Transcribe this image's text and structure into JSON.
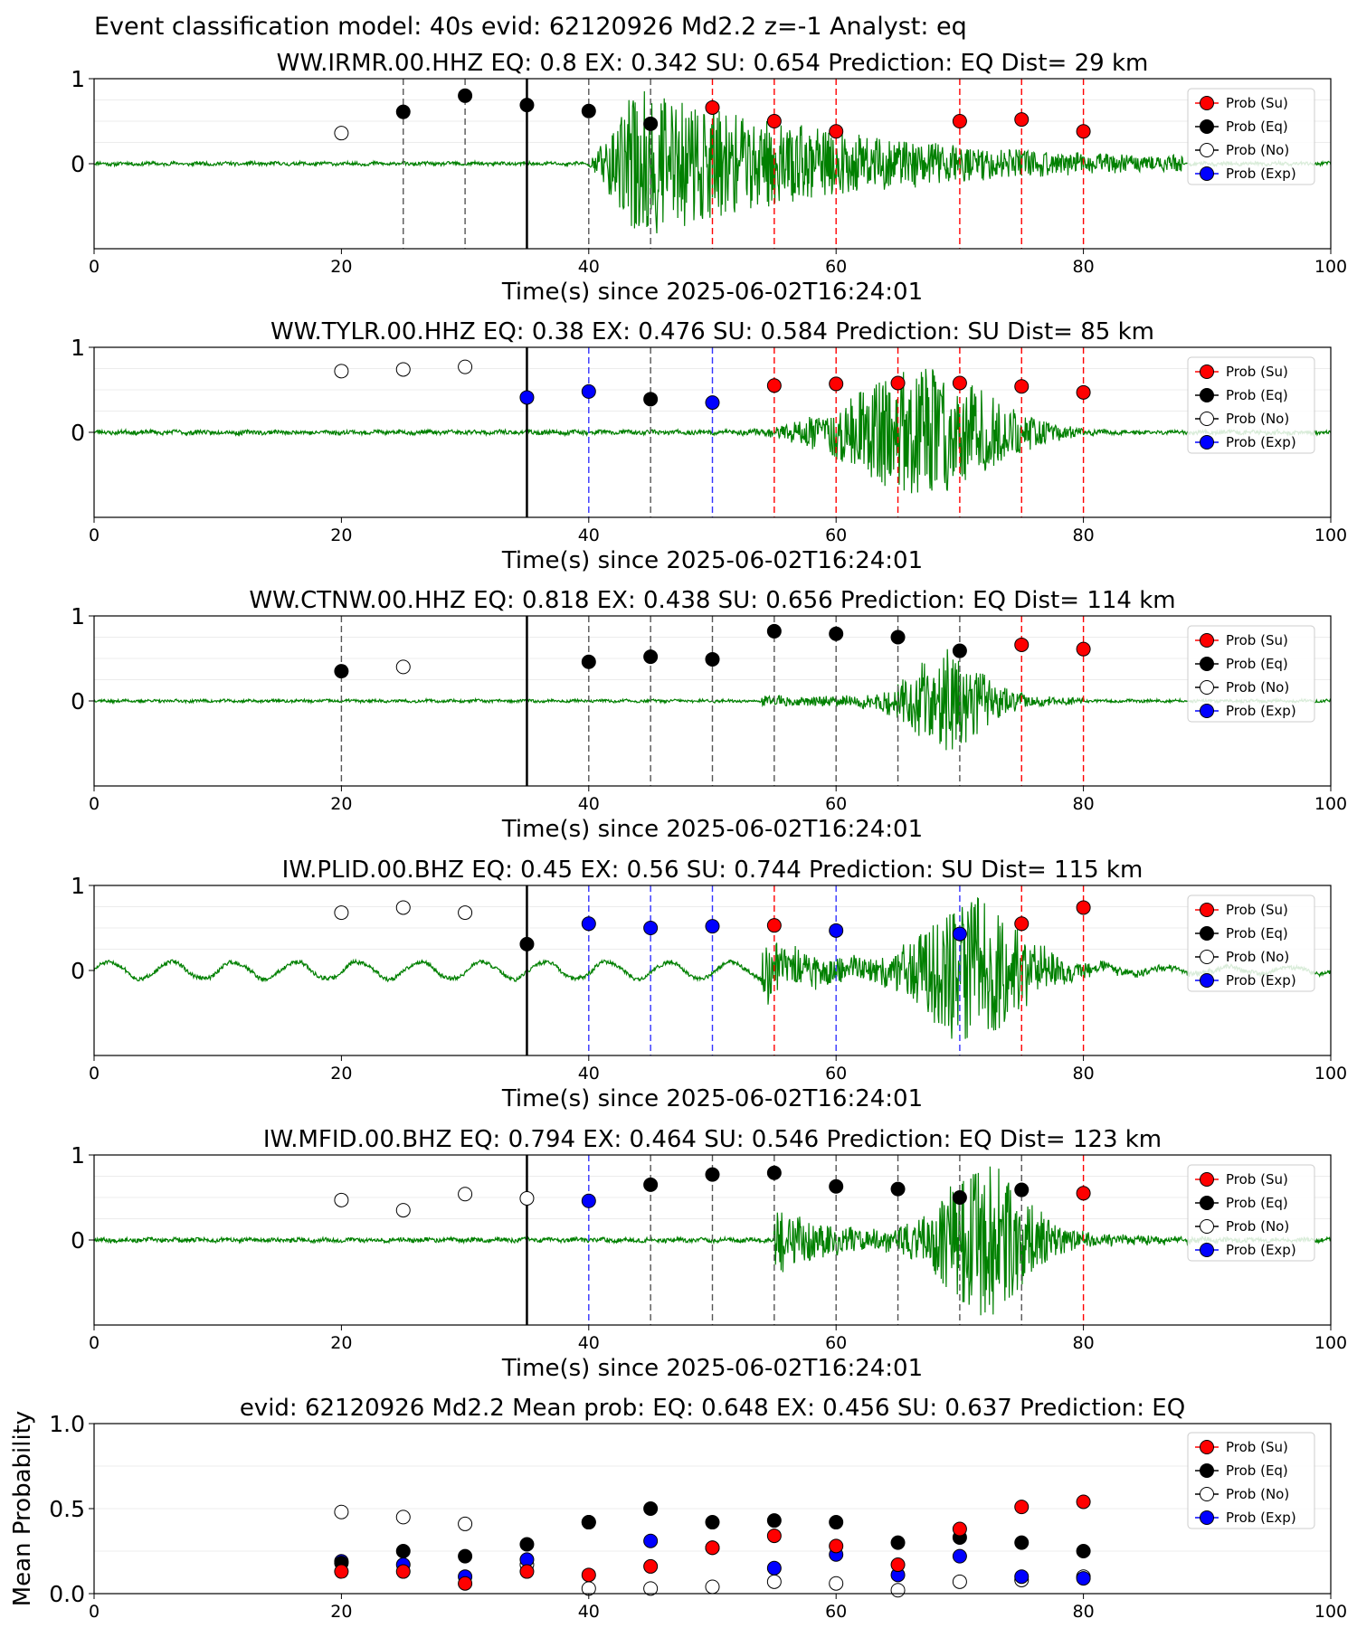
{
  "figure_title": "Event classification model: 40s evid: 62120926 Md2.2 z=-1 Analyst: eq",
  "legend_labels": [
    "Prob (Su)",
    "Prob (Eq)",
    "Prob (No)",
    "Prob (Exp)"
  ],
  "colors": {
    "su": "#ff0000",
    "eq": "#000000",
    "no": "#ffffff",
    "exp": "#0000ff",
    "waveform": "#008000"
  },
  "chart_data": [
    {
      "type": "scatter",
      "title": "WW.IRMR.00.HHZ   EQ: 0.8  EX: 0.342  SU: 0.654   Prediction: EQ    Dist= 29 km",
      "xlabel": "Time(s) since 2025-06-02T16:24:01",
      "xlim": [
        0,
        100
      ],
      "ylim": [
        -1,
        1
      ],
      "xticks": [
        "0",
        "20",
        "40",
        "60",
        "80",
        "100"
      ],
      "yticks": [
        "0",
        "1"
      ],
      "pick_time": 35,
      "waveform": {
        "onset": 40,
        "peak_time": 44,
        "amp": 0.9,
        "decay": 18,
        "end": 88,
        "noise": 0.025,
        "seed": 11
      },
      "points": [
        {
          "x": 20,
          "y": 0.36,
          "cls": "no"
        },
        {
          "x": 25,
          "y": 0.61,
          "cls": "eq"
        },
        {
          "x": 30,
          "y": 0.8,
          "cls": "eq"
        },
        {
          "x": 35,
          "y": 0.69,
          "cls": "eq"
        },
        {
          "x": 40,
          "y": 0.62,
          "cls": "eq"
        },
        {
          "x": 45,
          "y": 0.47,
          "cls": "eq"
        },
        {
          "x": 50,
          "y": 0.66,
          "cls": "su"
        },
        {
          "x": 55,
          "y": 0.5,
          "cls": "su"
        },
        {
          "x": 60,
          "y": 0.38,
          "cls": "su"
        },
        {
          "x": 70,
          "y": 0.5,
          "cls": "su"
        },
        {
          "x": 75,
          "y": 0.52,
          "cls": "su"
        },
        {
          "x": 80,
          "y": 0.38,
          "cls": "su"
        }
      ]
    },
    {
      "type": "scatter",
      "title": "WW.TYLR.00.HHZ   EQ: 0.38  EX: 0.476  SU: 0.584   Prediction: SU    Dist= 85 km",
      "xlabel": "Time(s) since 2025-06-02T16:24:01",
      "xlim": [
        0,
        100
      ],
      "ylim": [
        -1,
        1
      ],
      "xticks": [
        "0",
        "20",
        "40",
        "60",
        "80",
        "100"
      ],
      "yticks": [
        "0",
        "1"
      ],
      "pick_time": 35,
      "waveform": {
        "onset": 52,
        "peak_time": 64,
        "amp": 0.75,
        "decay": 12,
        "end": 82,
        "noise": 0.03,
        "seed": 23,
        "shape": "spindle"
      },
      "points": [
        {
          "x": 20,
          "y": 0.72,
          "cls": "no"
        },
        {
          "x": 25,
          "y": 0.74,
          "cls": "no"
        },
        {
          "x": 30,
          "y": 0.77,
          "cls": "no"
        },
        {
          "x": 35,
          "y": 0.41,
          "cls": "exp"
        },
        {
          "x": 40,
          "y": 0.48,
          "cls": "exp"
        },
        {
          "x": 45,
          "y": 0.39,
          "cls": "eq"
        },
        {
          "x": 50,
          "y": 0.35,
          "cls": "exp"
        },
        {
          "x": 55,
          "y": 0.55,
          "cls": "su"
        },
        {
          "x": 60,
          "y": 0.57,
          "cls": "su"
        },
        {
          "x": 65,
          "y": 0.58,
          "cls": "su"
        },
        {
          "x": 70,
          "y": 0.58,
          "cls": "su"
        },
        {
          "x": 75,
          "y": 0.54,
          "cls": "su"
        },
        {
          "x": 80,
          "y": 0.47,
          "cls": "su"
        }
      ]
    },
    {
      "type": "scatter",
      "title": "WW.CTNW.00.HHZ   EQ: 0.818  EX: 0.438  SU: 0.656   Prediction: EQ    Dist= 114 km",
      "xlabel": "Time(s) since 2025-06-02T16:24:01",
      "xlim": [
        0,
        100
      ],
      "ylim": [
        -1,
        1
      ],
      "xticks": [
        "0",
        "20",
        "40",
        "60",
        "80",
        "100"
      ],
      "yticks": [
        "0",
        "1"
      ],
      "pick_time": 35,
      "waveform": {
        "onset": 54,
        "peak_time": 69,
        "amp": 0.55,
        "decay": 6,
        "end": 80,
        "noise": 0.02,
        "seed": 37,
        "shape": "double",
        "pre_amp": 0.1
      },
      "points": [
        {
          "x": 20,
          "y": 0.35,
          "cls": "eq"
        },
        {
          "x": 25,
          "y": 0.4,
          "cls": "no"
        },
        {
          "x": 40,
          "y": 0.46,
          "cls": "eq"
        },
        {
          "x": 45,
          "y": 0.52,
          "cls": "eq"
        },
        {
          "x": 50,
          "y": 0.49,
          "cls": "eq"
        },
        {
          "x": 55,
          "y": 0.82,
          "cls": "eq"
        },
        {
          "x": 60,
          "y": 0.79,
          "cls": "eq"
        },
        {
          "x": 65,
          "y": 0.75,
          "cls": "eq"
        },
        {
          "x": 70,
          "y": 0.59,
          "cls": "eq"
        },
        {
          "x": 75,
          "y": 0.66,
          "cls": "su"
        },
        {
          "x": 80,
          "y": 0.61,
          "cls": "su"
        }
      ]
    },
    {
      "type": "scatter",
      "title": "IW.PLID.00.BHZ   EQ: 0.45  EX: 0.56  SU: 0.744   Prediction: SU    Dist= 115 km",
      "xlabel": "Time(s) since 2025-06-02T16:24:01",
      "xlim": [
        0,
        100
      ],
      "ylim": [
        -1,
        1
      ],
      "xticks": [
        "0",
        "20",
        "40",
        "60",
        "80",
        "100"
      ],
      "yticks": [
        "0",
        "1"
      ],
      "pick_time": 35,
      "waveform": {
        "onset": 54,
        "peak_time": 71,
        "amp": 0.75,
        "decay": 8,
        "end": 92,
        "noise": 0.03,
        "seed": 51,
        "shape": "double",
        "pre_amp": 0.55,
        "swell": 0.1
      },
      "points": [
        {
          "x": 20,
          "y": 0.68,
          "cls": "no"
        },
        {
          "x": 25,
          "y": 0.74,
          "cls": "no"
        },
        {
          "x": 30,
          "y": 0.68,
          "cls": "no"
        },
        {
          "x": 35,
          "y": 0.31,
          "cls": "eq"
        },
        {
          "x": 40,
          "y": 0.55,
          "cls": "exp"
        },
        {
          "x": 45,
          "y": 0.5,
          "cls": "exp"
        },
        {
          "x": 50,
          "y": 0.52,
          "cls": "exp"
        },
        {
          "x": 55,
          "y": 0.53,
          "cls": "su"
        },
        {
          "x": 60,
          "y": 0.47,
          "cls": "exp"
        },
        {
          "x": 70,
          "y": 0.43,
          "cls": "exp"
        },
        {
          "x": 75,
          "y": 0.55,
          "cls": "su"
        },
        {
          "x": 80,
          "y": 0.74,
          "cls": "su"
        }
      ]
    },
    {
      "type": "scatter",
      "title": "IW.MFID.00.BHZ   EQ: 0.794  EX: 0.464  SU: 0.546   Prediction: EQ    Dist= 123 km",
      "xlabel": "Time(s) since 2025-06-02T16:24:01",
      "xlim": [
        0,
        100
      ],
      "ylim": [
        -1,
        1
      ],
      "xticks": [
        "0",
        "20",
        "40",
        "60",
        "80",
        "100"
      ],
      "yticks": [
        "0",
        "1"
      ],
      "pick_time": 35,
      "waveform": {
        "onset": 55,
        "peak_time": 72,
        "amp": 0.8,
        "decay": 7,
        "end": 92,
        "noise": 0.03,
        "seed": 67,
        "shape": "double",
        "pre_amp": 0.5
      },
      "points": [
        {
          "x": 20,
          "y": 0.47,
          "cls": "no"
        },
        {
          "x": 25,
          "y": 0.35,
          "cls": "no"
        },
        {
          "x": 30,
          "y": 0.54,
          "cls": "no"
        },
        {
          "x": 35,
          "y": 0.49,
          "cls": "no"
        },
        {
          "x": 40,
          "y": 0.46,
          "cls": "exp"
        },
        {
          "x": 45,
          "y": 0.65,
          "cls": "eq"
        },
        {
          "x": 50,
          "y": 0.77,
          "cls": "eq"
        },
        {
          "x": 55,
          "y": 0.79,
          "cls": "eq"
        },
        {
          "x": 60,
          "y": 0.63,
          "cls": "eq"
        },
        {
          "x": 65,
          "y": 0.6,
          "cls": "eq"
        },
        {
          "x": 70,
          "y": 0.5,
          "cls": "eq"
        },
        {
          "x": 75,
          "y": 0.59,
          "cls": "eq"
        },
        {
          "x": 80,
          "y": 0.55,
          "cls": "su"
        }
      ]
    },
    {
      "type": "scatter",
      "title": "evid: 62120926  Md2.2   Mean prob:   EQ: 0.648  EX: 0.456  SU: 0.637   Prediction: EQ",
      "ylabel": "Mean Probability",
      "xlim": [
        0,
        100
      ],
      "ylim": [
        0,
        1
      ],
      "xticks": [
        "0",
        "20",
        "40",
        "60",
        "80",
        "100"
      ],
      "yticks": [
        "0.0",
        "0.5",
        "1.0"
      ],
      "x": [
        20,
        25,
        30,
        35,
        40,
        45,
        50,
        55,
        60,
        65,
        70,
        75,
        80
      ],
      "series": [
        {
          "name": "Prob (No)",
          "cls": "no",
          "values": [
            0.48,
            0.45,
            0.41,
            0.17,
            0.03,
            0.03,
            0.04,
            0.07,
            0.06,
            0.02,
            0.07,
            0.08,
            0.1
          ]
        },
        {
          "name": "Prob (Exp)",
          "cls": "exp",
          "values": [
            0.19,
            0.17,
            0.1,
            0.2,
            0.42,
            0.31,
            0.27,
            0.15,
            0.23,
            0.11,
            0.22,
            0.1,
            0.09
          ]
        },
        {
          "name": "Prob (Eq)",
          "cls": "eq",
          "values": [
            0.18,
            0.25,
            0.22,
            0.29,
            0.42,
            0.5,
            0.42,
            0.43,
            0.42,
            0.3,
            0.33,
            0.3,
            0.25
          ]
        },
        {
          "name": "Prob (Su)",
          "cls": "su",
          "values": [
            0.13,
            0.13,
            0.06,
            0.13,
            0.11,
            0.16,
            0.27,
            0.34,
            0.28,
            0.17,
            0.38,
            0.51,
            0.54
          ]
        }
      ]
    }
  ]
}
